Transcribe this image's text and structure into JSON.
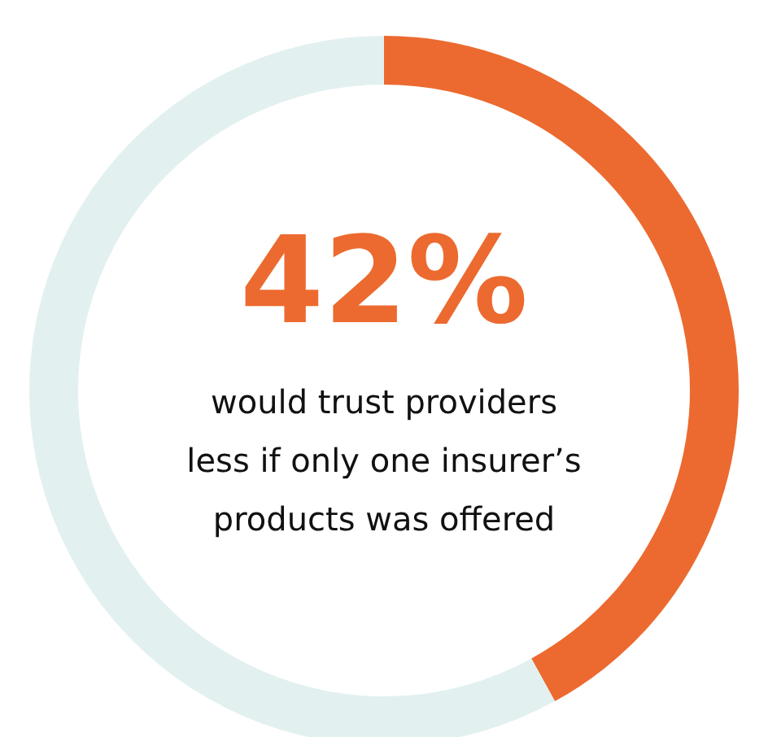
{
  "chart_data": {
    "type": "donut",
    "categories": [
      null,
      null
    ],
    "values": [
      42,
      58
    ],
    "colors": [
      "#ec6a2f",
      "#e3f0f0"
    ],
    "value_labels": [
      "42%",
      null
    ],
    "annotations": [
      "would trust providers\nless if only one insurer’s\nproducts was offered"
    ]
  }
}
